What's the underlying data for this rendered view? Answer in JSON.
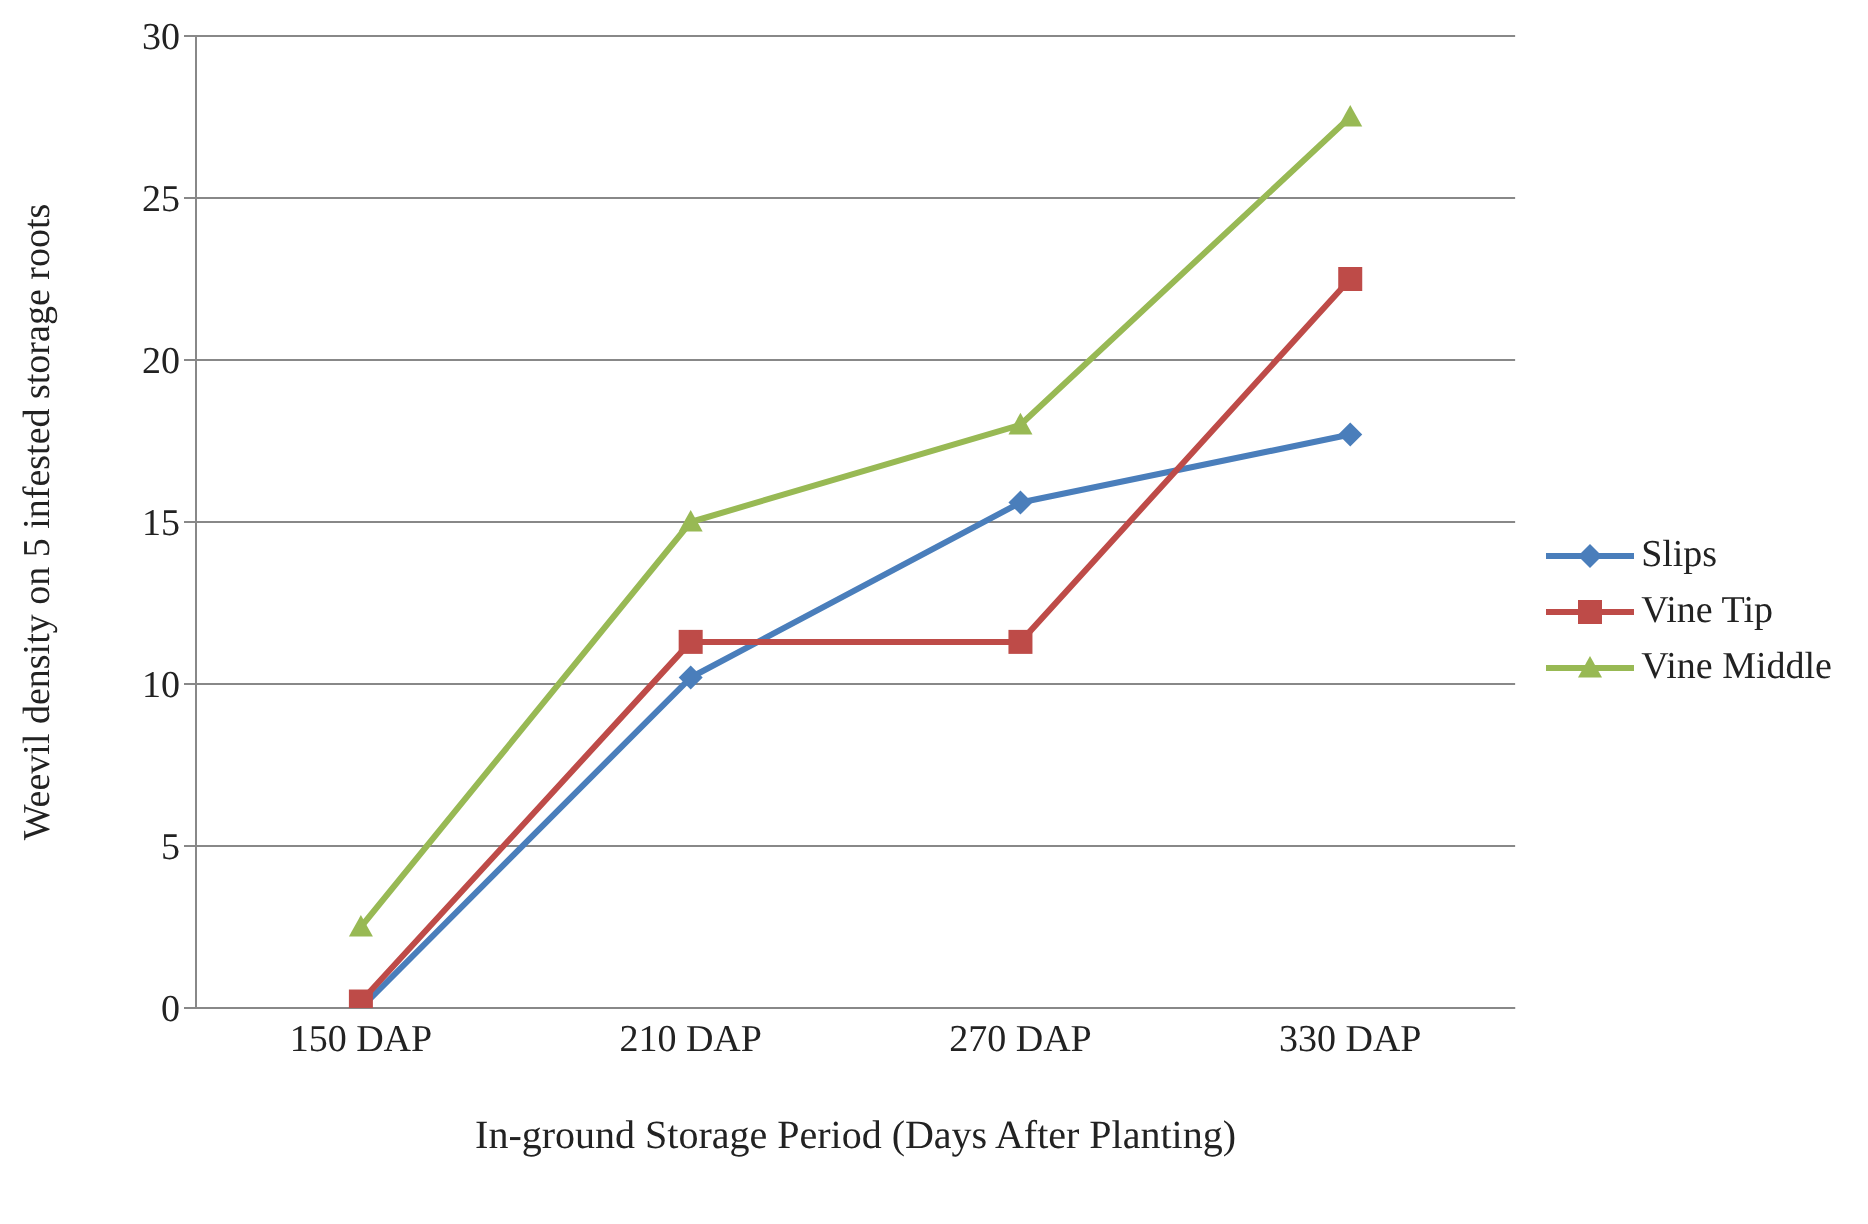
{
  "chart_data": {
    "type": "line",
    "xlabel": "In-ground Storage Period (Days After Planting)",
    "ylabel": "Weevil density on 5 infested storage roots",
    "categories": [
      "150 DAP",
      "210 DAP",
      "270 DAP",
      "330 DAP"
    ],
    "series": [
      {
        "name": "Slips",
        "color": "#4a7ebb",
        "marker": "diamond",
        "values": [
          0,
          10.2,
          15.6,
          17.7
        ]
      },
      {
        "name": "Vine Tip",
        "color": "#be4b48",
        "marker": "square",
        "values": [
          0.2,
          11.3,
          11.3,
          22.5
        ]
      },
      {
        "name": "Vine Middle",
        "color": "#98b954",
        "marker": "triangle",
        "values": [
          2.5,
          15,
          18,
          27.5
        ]
      }
    ],
    "ylim": [
      0,
      30
    ],
    "yticks": [
      0,
      5,
      10,
      15,
      20,
      25,
      30
    ],
    "grid": "y",
    "legend": "right",
    "line_style": "solid"
  }
}
